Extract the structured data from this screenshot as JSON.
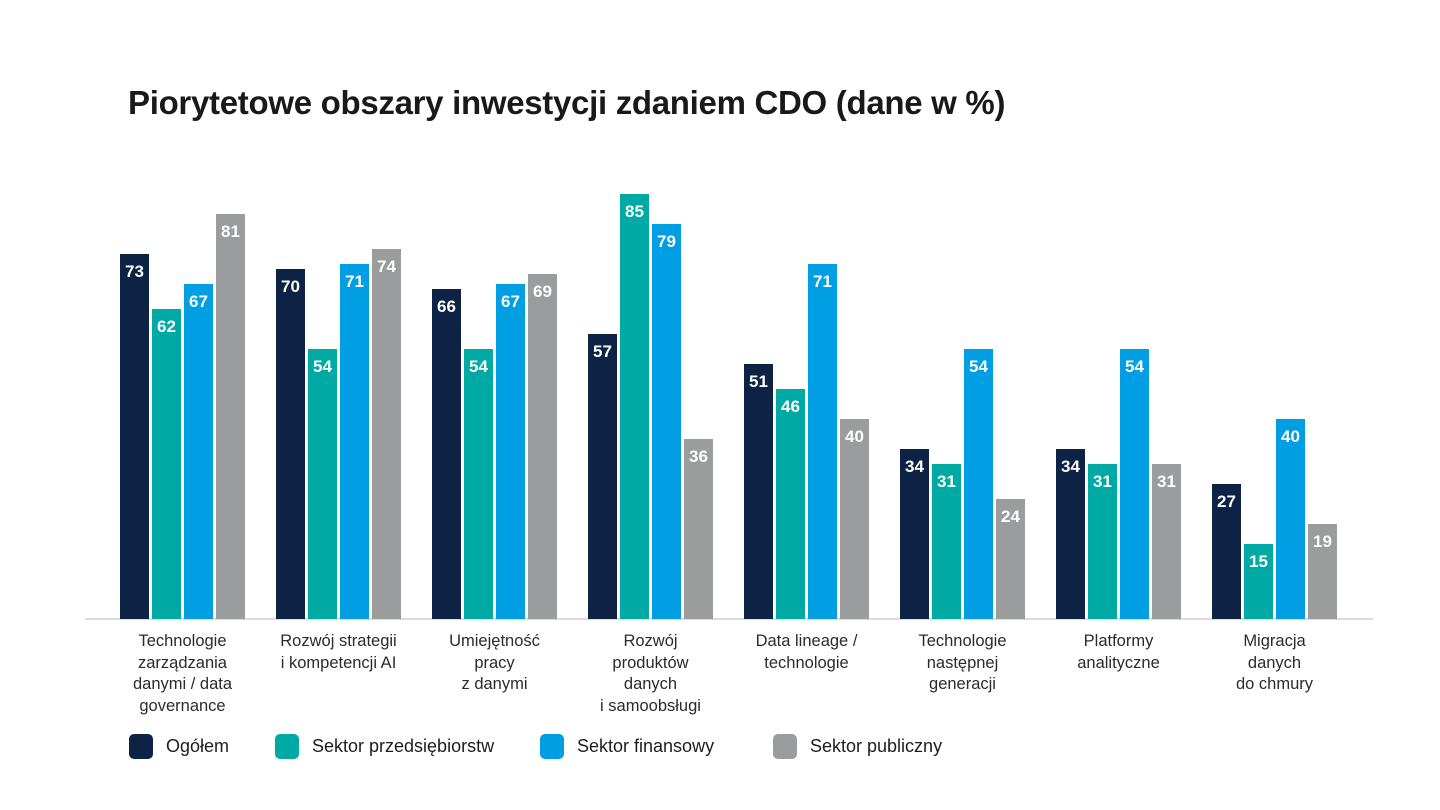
{
  "title": "Piorytetowe obszary inwestycji zdaniem CDO (dane w %)",
  "background_color": "#ffffff",
  "axis_line_color": "#dcdcdc",
  "chart_data": {
    "type": "bar",
    "title": "Piorytetowe obszary inwestycji zdaniem CDO (dane w %)",
    "unit": "%",
    "ylim": [
      0,
      100
    ],
    "grid": false,
    "value_labels": true,
    "legend_position": "bottom",
    "categories": [
      "Technologie zarządzania danymi / data governance",
      "Rozwój strategii i kompetencji AI",
      "Umiejętność pracy z danymi",
      "Rozwój produktów danych i samoobsługi",
      "Data lineage / technologie",
      "Technologie następnej generacji",
      "Platformy analityczne",
      "Migracja danych do chmury"
    ],
    "category_lines": [
      [
        "Technologie",
        "zarządzania",
        "danymi / data",
        "governance"
      ],
      [
        "Rozwój strategii",
        "i kompetencji AI"
      ],
      [
        "Umiejętność",
        "pracy",
        "z danymi"
      ],
      [
        "Rozwój",
        "produktów",
        "danych",
        "i samoobsługi"
      ],
      [
        "Data lineage /",
        "technologie"
      ],
      [
        "Technologie",
        "następnej",
        "generacji"
      ],
      [
        "Platformy",
        "analityczne"
      ],
      [
        "Migracja",
        "danych",
        "do chmury"
      ]
    ],
    "series": [
      {
        "name": "Ogółem",
        "color": "#0d2244",
        "values": [
          73,
          70,
          66,
          57,
          51,
          34,
          34,
          27
        ]
      },
      {
        "name": "Sektor przedsiębiorstw",
        "color": "#00aaa4",
        "values": [
          62,
          54,
          54,
          85,
          46,
          31,
          31,
          15
        ]
      },
      {
        "name": "Sektor finansowy",
        "color": "#009fe3",
        "values": [
          67,
          71,
          67,
          79,
          71,
          54,
          54,
          40
        ]
      },
      {
        "name": "Sektor publiczny",
        "color": "#9a9c9e",
        "values": [
          81,
          74,
          69,
          36,
          40,
          24,
          31,
          19
        ]
      }
    ]
  }
}
